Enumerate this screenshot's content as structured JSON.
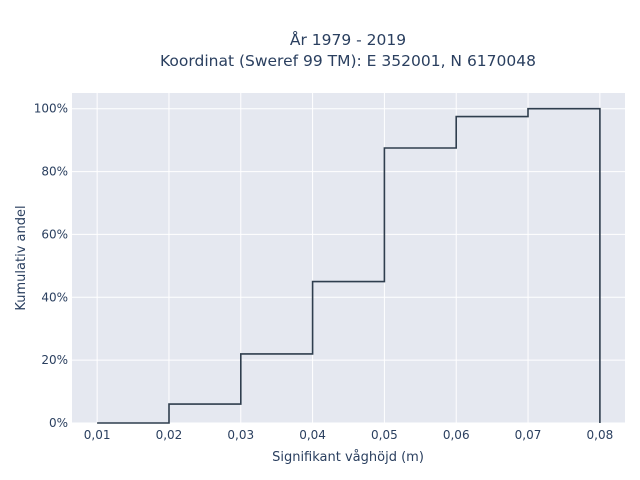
{
  "chart_data": {
    "type": "step",
    "title_line1": "År 1979 - 2019",
    "title_line2": "Koordinat (Sweref 99 TM): E 352001, N 6170048",
    "xlabel": "Signifikant våghöjd (m)",
    "ylabel": "Kumulativ andel",
    "x_ticks": [
      "0,01",
      "0,02",
      "0,03",
      "0,04",
      "0,05",
      "0,06",
      "0,07",
      "0,08"
    ],
    "y_ticks": [
      "0%",
      "20%",
      "40%",
      "60%",
      "80%",
      "100%"
    ],
    "xlim": [
      0.0065,
      0.0835
    ],
    "ylim": [
      0,
      1.05
    ],
    "grid": true,
    "line_color": "#2f3e4e",
    "plot_bg": "#e5e8f0",
    "series": [
      {
        "x": [
          0.01,
          0.02,
          0.02,
          0.03,
          0.03,
          0.04,
          0.04,
          0.05,
          0.05,
          0.06,
          0.06,
          0.07,
          0.07,
          0.08,
          0.08
        ],
        "y": [
          0.0,
          0.0,
          0.06,
          0.06,
          0.22,
          0.22,
          0.45,
          0.45,
          0.875,
          0.875,
          0.975,
          0.975,
          1.0,
          1.0,
          0.0
        ]
      }
    ]
  }
}
